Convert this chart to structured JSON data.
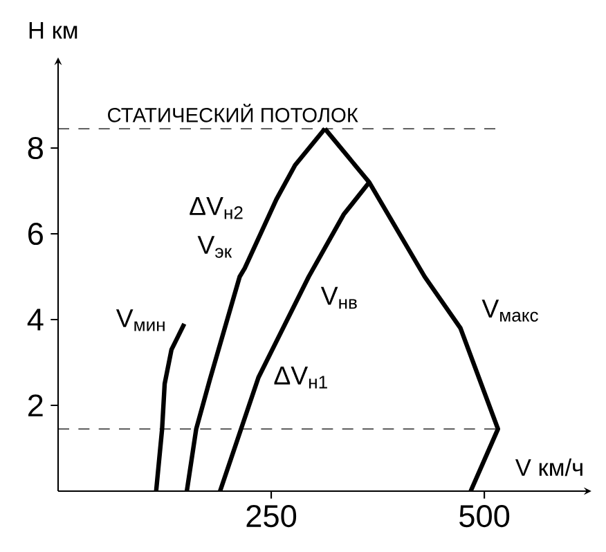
{
  "chart_data": {
    "type": "line",
    "xlabel": "V км/ч",
    "ylabel": "H км",
    "xlim": [
      0,
      620
    ],
    "ylim": [
      0,
      10
    ],
    "xticks": [
      250,
      500
    ],
    "yticks": [
      2,
      4,
      6,
      8
    ],
    "series": [
      {
        "name": "V$_{мин}$",
        "color": "#000000",
        "x": [
          115,
          122,
          125,
          133,
          148
        ],
        "values": [
          0,
          1.45,
          2.5,
          3.3,
          3.9
        ]
      },
      {
        "name": "V$_{эк}$",
        "color": "#000000",
        "x": [
          151,
          162,
          178,
          213,
          219,
          256,
          278,
          313
        ],
        "values": [
          0,
          1.45,
          2.6,
          5,
          5.2,
          6.8,
          7.6,
          8.45
        ]
      },
      {
        "name": "V$_{нв}$",
        "color": "#000000",
        "x": [
          190,
          235,
          294,
          335,
          365
        ],
        "values": [
          0,
          2.65,
          5,
          6.45,
          7.2
        ]
      },
      {
        "name": "V$_{макс}$",
        "color": "#000000",
        "x": [
          313,
          365,
          430,
          472,
          516,
          484
        ],
        "values": [
          8.45,
          7.2,
          5,
          3.8,
          1.45,
          0
        ]
      }
    ],
    "ref_lines": [
      {
        "axis": "y",
        "value": 1.45,
        "line_style": "dashed"
      },
      {
        "axis": "y",
        "value": 8.45,
        "label": "СТАТИЧЕСКИЙ ПОТОЛОК",
        "line_style": "dashed"
      }
    ],
    "annotations": [
      "ΔV$_{н2}$",
      "ΔV$_{н1}$"
    ],
    "line_style": "solid",
    "marker": "none"
  }
}
